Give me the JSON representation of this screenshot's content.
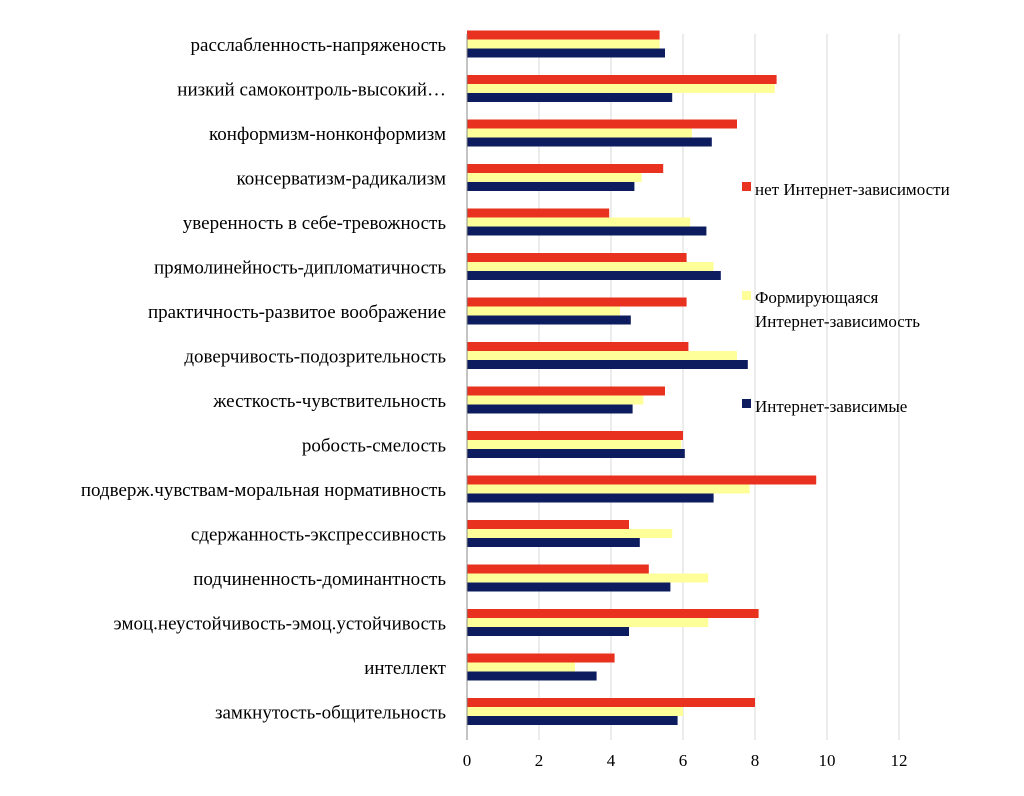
{
  "chart_data": {
    "type": "bar",
    "orientation": "horizontal",
    "title": "",
    "xlabel": "",
    "ylabel": "",
    "xlim": [
      0,
      12
    ],
    "ticks": [
      0,
      2,
      4,
      6,
      8,
      10,
      12
    ],
    "grid": true,
    "legend_position": "right",
    "categories": [
      "расслабленность-напряженость",
      "низкий самоконтроль-высокий…",
      "конформизм-нонконформизм",
      "консерватизм-радикализм",
      "уверенность в себе-тревожность",
      "прямолинейность-дипломатичность",
      "практичность-развитое воображение",
      "доверчивость-подозрительность",
      "жесткость-чувствительность",
      "робость-смелость",
      "подверж.чувствам-моральная нормативность",
      "сдержанность-экспрессивность",
      "подчиненность-доминантность",
      "эмоц.неустойчивость-эмоц.устойчивость",
      "интеллект",
      "замкнутость-общительность"
    ],
    "series": [
      {
        "name": "нет Интернет-зависимости",
        "color": "#e8311e",
        "values": [
          5.35,
          8.6,
          7.5,
          5.45,
          3.95,
          6.1,
          6.1,
          6.15,
          5.5,
          6.0,
          9.7,
          4.5,
          5.05,
          8.1,
          4.1,
          8.0
        ]
      },
      {
        "name": "Формирующаяся Интернет-зависимость",
        "color": "#ffff99",
        "values": [
          5.35,
          8.55,
          6.25,
          4.85,
          6.2,
          6.85,
          4.25,
          7.5,
          4.9,
          5.95,
          7.85,
          5.7,
          6.7,
          6.7,
          3.0,
          6.0
        ]
      },
      {
        "name": "Интернет-зависимые",
        "color": "#0c1c5e",
        "values": [
          5.5,
          5.7,
          6.8,
          4.65,
          6.65,
          7.05,
          4.55,
          7.8,
          4.6,
          6.05,
          6.85,
          4.8,
          5.65,
          4.5,
          3.6,
          5.85
        ]
      }
    ]
  }
}
